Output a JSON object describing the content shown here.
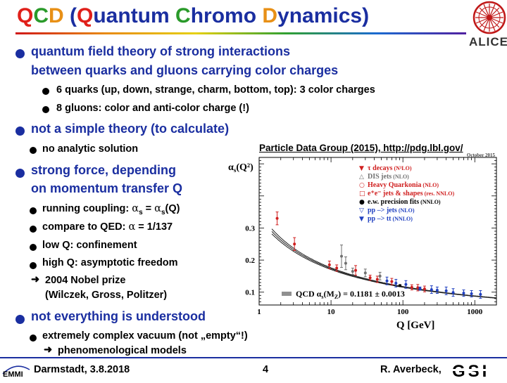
{
  "title": {
    "q1": "Q",
    "c1": "C",
    "d1": "D",
    "p_open": " (",
    "q2": "Q",
    "uantum": "uantum ",
    "c2": "C",
    "hromo": "hromo ",
    "d2": "D",
    "ynamics": "ynamics)"
  },
  "logo_alice": "ALICE",
  "bullets": {
    "b1_line1": "quantum field theory of strong interactions",
    "b1_line2": "between quarks and gluons carrying color charges",
    "b1_sub1": "6 quarks (up, down, strange, charm, bottom, top): 3 color charges",
    "b1_sub2": "8 gluons: color and anti-color charge (!)",
    "b2": "not a simple theory (to calculate)",
    "b2_sub1": "no analytic solution",
    "b3_line1": "strong force, depending",
    "b3_line2": "on momentum transfer Q",
    "b3_sub1_pre": "running coupling: ",
    "b3_sub1_alpha1": "α",
    "b3_sub1_s1": "s",
    "b3_sub1_eq": " = ",
    "b3_sub1_alpha2": "α",
    "b3_sub1_s2": "s",
    "b3_sub1_post": "(Q)",
    "b3_sub2_pre": "compare to QED: ",
    "b3_sub2_alpha": "α",
    "b3_sub2_post": " = 1/137",
    "b3_sub3": "low Q: confinement",
    "b3_sub4": "high Q: asymptotic freedom",
    "b3_arrow_line1": "2004 Nobel prize",
    "b3_arrow_line2": "(Wilczek, Gross, Politzer)",
    "b4": "not everything is understood",
    "b4_sub1": "extremely complex vacuum (not „empty“!)",
    "b4_arrow": "phenomenological models"
  },
  "pdg_ref": "Particle Data Group (2015), http://pdg.lbl.gov/",
  "footer": {
    "left": "Darmstadt, 3.8.2018",
    "page": "4",
    "right": "R. Averbeck,",
    "logo_left": "EMMI",
    "logo_right": "GSI"
  },
  "chart_data": {
    "type": "scatter",
    "date_label": "October 2015",
    "ylabel_alpha": "α",
    "ylabel_sub": "s",
    "ylabel_arg": "(Q²)",
    "xlabel": "Q [GeV]",
    "xscale": "log",
    "xlim": [
      1,
      2000
    ],
    "ylim": [
      0.06,
      0.52
    ],
    "xticks": [
      {
        "v": 1,
        "label": "1"
      },
      {
        "v": 10,
        "label": "10"
      },
      {
        "v": 100,
        "label": "100"
      },
      {
        "v": 1000,
        "label": "1000"
      }
    ],
    "yticks": [
      {
        "v": 0.1,
        "label": "0.1"
      },
      {
        "v": 0.2,
        "label": "0.2"
      },
      {
        "v": 0.3,
        "label": "0.3"
      }
    ],
    "qcd_label": "QCD α",
    "qcd_label_sub": "s",
    "qcd_label_post": "(M",
    "qcd_label_sub2": "Z",
    "qcd_label_end": ") = 0.1181 ± 0.0013",
    "legend": [
      {
        "symbol": "▼",
        "color": "#d02020",
        "name": "τ decays",
        "note": " (N³LO)"
      },
      {
        "symbol": "△",
        "color": "#707070",
        "name": "DIS jets",
        "note": " (NLO)"
      },
      {
        "symbol": "○",
        "color": "#d02020",
        "name": "Heavy Quarkonia",
        "note": " (NLO)"
      },
      {
        "symbol": "□",
        "color": "#d02020",
        "name": "e⁺e⁻ jets & shapes",
        "note": " (res. NNLO)"
      },
      {
        "symbol": "●",
        "color": "#000000",
        "name": "e.w. precision fits",
        "note": " (NNLO)"
      },
      {
        "symbol": "▽",
        "color": "#2040c0",
        "name": "pp –> jets",
        "note": " (NLO)"
      },
      {
        "symbol": "▼",
        "color": "#2040c0",
        "name": "pp –> tt",
        "note": " (NNLO)"
      }
    ],
    "curve_center": 0.1181,
    "curve_err": 0.0013,
    "points": [
      {
        "x": 1.78,
        "y": 0.33,
        "e": 0.02,
        "c": "#d02020"
      },
      {
        "x": 3.1,
        "y": 0.25,
        "e": 0.02,
        "c": "#d02020"
      },
      {
        "x": 9.5,
        "y": 0.185,
        "e": 0.012,
        "c": "#d02020"
      },
      {
        "x": 12,
        "y": 0.175,
        "e": 0.01,
        "c": "#d02020"
      },
      {
        "x": 14,
        "y": 0.212,
        "e": 0.035,
        "c": "#707070"
      },
      {
        "x": 16,
        "y": 0.19,
        "e": 0.02,
        "c": "#707070"
      },
      {
        "x": 20,
        "y": 0.165,
        "e": 0.01,
        "c": "#707070"
      },
      {
        "x": 22,
        "y": 0.168,
        "e": 0.015,
        "c": "#d02020"
      },
      {
        "x": 30,
        "y": 0.16,
        "e": 0.012,
        "c": "#707070"
      },
      {
        "x": 35,
        "y": 0.145,
        "e": 0.008,
        "c": "#d02020"
      },
      {
        "x": 44,
        "y": 0.14,
        "e": 0.01,
        "c": "#d02020"
      },
      {
        "x": 48,
        "y": 0.15,
        "e": 0.012,
        "c": "#707070"
      },
      {
        "x": 60,
        "y": 0.135,
        "e": 0.012,
        "c": "#2040c0"
      },
      {
        "x": 70,
        "y": 0.133,
        "e": 0.01,
        "c": "#d02020"
      },
      {
        "x": 80,
        "y": 0.128,
        "e": 0.012,
        "c": "#2040c0"
      },
      {
        "x": 91,
        "y": 0.1205,
        "e": 0.003,
        "c": "#000000"
      },
      {
        "x": 110,
        "y": 0.124,
        "e": 0.012,
        "c": "#2040c0"
      },
      {
        "x": 133,
        "y": 0.115,
        "e": 0.008,
        "c": "#d02020"
      },
      {
        "x": 161,
        "y": 0.114,
        "e": 0.01,
        "c": "#d02020"
      },
      {
        "x": 173,
        "y": 0.111,
        "e": 0.005,
        "c": "#2040c0"
      },
      {
        "x": 200,
        "y": 0.11,
        "e": 0.009,
        "c": "#d02020"
      },
      {
        "x": 250,
        "y": 0.108,
        "e": 0.012,
        "c": "#2040c0"
      },
      {
        "x": 300,
        "y": 0.106,
        "e": 0.01,
        "c": "#2040c0"
      },
      {
        "x": 400,
        "y": 0.104,
        "e": 0.012,
        "c": "#2040c0"
      },
      {
        "x": 500,
        "y": 0.099,
        "e": 0.012,
        "c": "#2040c0"
      },
      {
        "x": 700,
        "y": 0.097,
        "e": 0.01,
        "c": "#2040c0"
      },
      {
        "x": 900,
        "y": 0.095,
        "e": 0.01,
        "c": "#2040c0"
      },
      {
        "x": 1200,
        "y": 0.093,
        "e": 0.012,
        "c": "#2040c0"
      }
    ]
  }
}
